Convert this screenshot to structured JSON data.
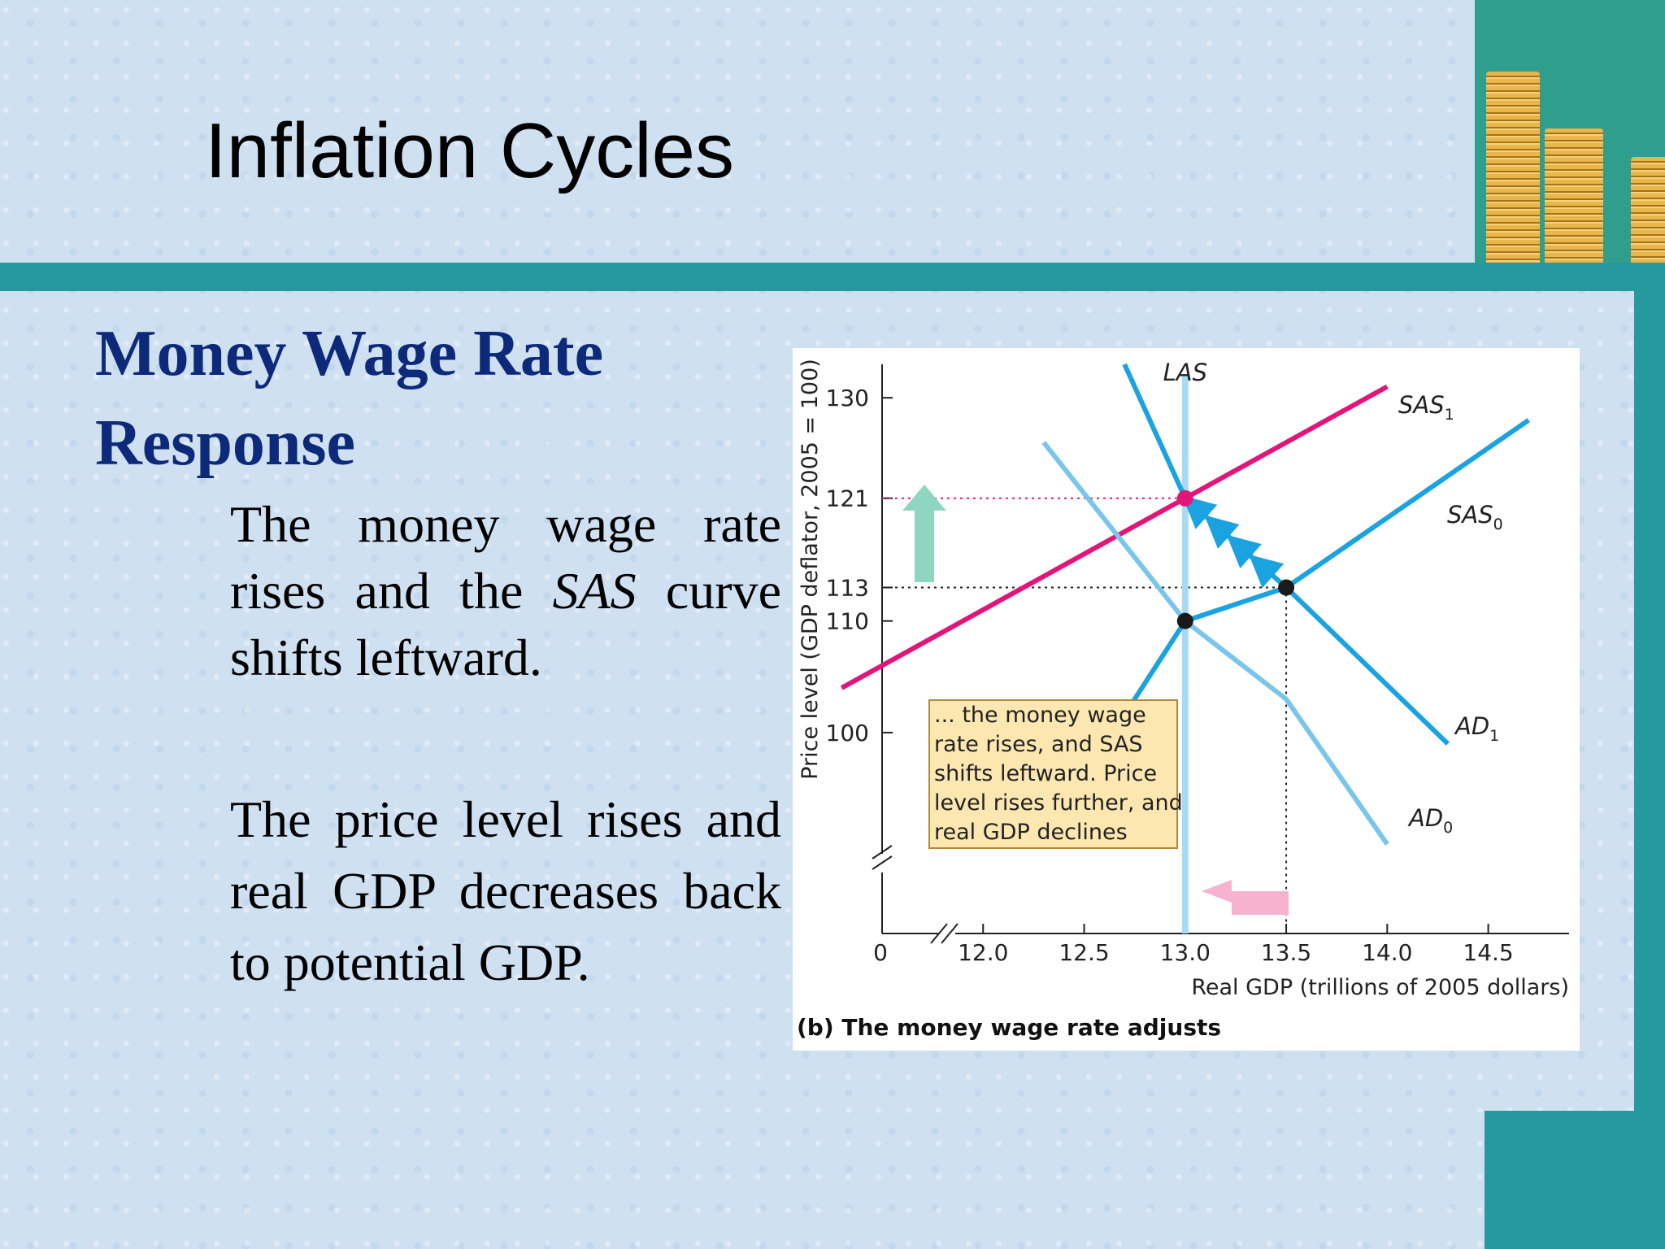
{
  "slide": {
    "title": "Inflation Cycles",
    "heading_line1": "Money Wage Rate",
    "heading_line2": "Response",
    "para1_a": "The money wage rate rises and the ",
    "para1_em": "SAS",
    "para1_b": " curve shifts leftward.",
    "para2": "The price level rises and real GDP decreases back to potential GDP."
  },
  "colors": {
    "accent_teal": "#259a9e",
    "heading_navy": "#0d2a7a",
    "sas1_magenta": "#e2157a",
    "curve_blue": "#1aa3e0",
    "curve_light_blue": "#79c6ea",
    "las_blue": "#a8daf2"
  },
  "chart_data": {
    "type": "line",
    "caption": "(b) The money wage rate adjusts",
    "xlabel": "Real GDP (trillions of 2005 dollars)",
    "ylabel": "Price level (GDP deflator, 2005 = 100)",
    "origin_label": "0",
    "x_ticks": [
      "12.0",
      "12.5",
      "13.0",
      "13.5",
      "14.0",
      "14.5"
    ],
    "y_ticks": [
      "100",
      "110",
      "113",
      "121",
      "130"
    ],
    "xlim": [
      11.5,
      14.9
    ],
    "ylim": [
      82,
      133
    ],
    "series": [
      {
        "name": "LAS",
        "points": [
          [
            13.0,
            82
          ],
          [
            13.0,
            132
          ]
        ]
      },
      {
        "name": "SAS1",
        "points": [
          [
            11.3,
            104
          ],
          [
            13.0,
            121
          ],
          [
            14.0,
            131
          ]
        ]
      },
      {
        "name": "SAS0",
        "points": [
          [
            12.5,
            96
          ],
          [
            13.0,
            110
          ],
          [
            13.5,
            113
          ],
          [
            14.7,
            128
          ]
        ]
      },
      {
        "name": "AD1",
        "points": [
          [
            12.7,
            133
          ],
          [
            13.0,
            121
          ],
          [
            13.5,
            113
          ],
          [
            14.3,
            99
          ]
        ]
      },
      {
        "name": "AD0",
        "points": [
          [
            12.3,
            126
          ],
          [
            13.0,
            110
          ],
          [
            13.5,
            103
          ],
          [
            14.0,
            90
          ]
        ]
      }
    ],
    "equilibria": [
      {
        "x": 13.0,
        "y": 110
      },
      {
        "x": 13.5,
        "y": 113
      },
      {
        "x": 13.0,
        "y": 121
      }
    ],
    "annotation": [
      "... the money wage",
      "rate rises, and SAS",
      "shifts leftward. Price",
      "level rises further, and",
      "real GDP declines"
    ]
  }
}
